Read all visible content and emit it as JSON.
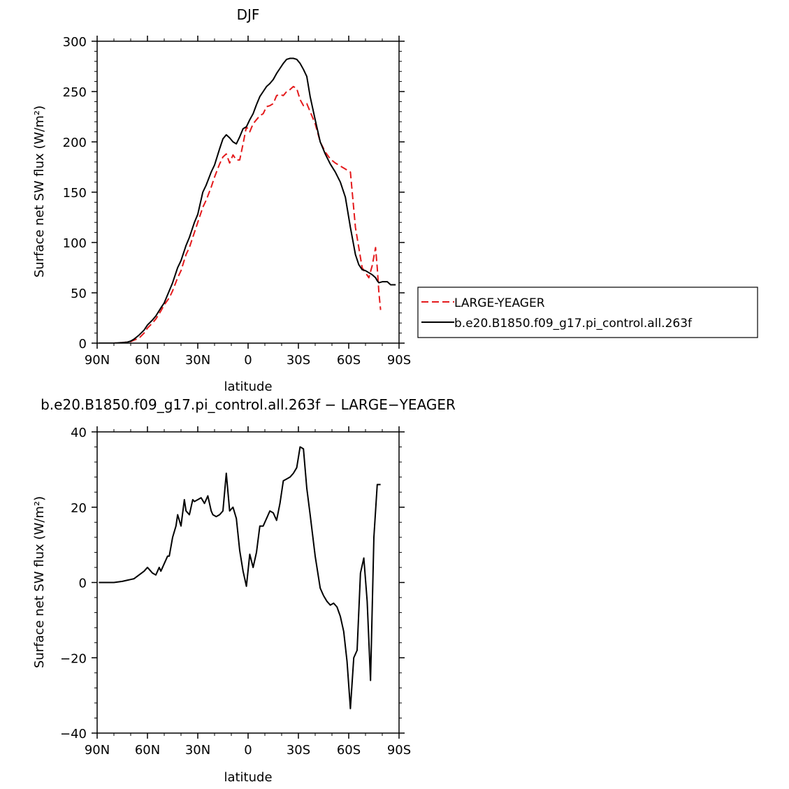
{
  "chart_data": [
    {
      "type": "line",
      "title": "DJF",
      "xlabel": "latitude",
      "ylabel": "Surface net SW flux (W/m²)",
      "xlim": [
        -90,
        90
      ],
      "ylim": [
        0,
        300
      ],
      "x_tick_values": [
        -90,
        -60,
        -30,
        0,
        30,
        60,
        90
      ],
      "x_tick_labels": [
        "90N",
        "60N",
        "30N",
        "0",
        "30S",
        "60S",
        "90S"
      ],
      "y_tick_values": [
        0,
        50,
        100,
        150,
        200,
        250,
        300
      ],
      "y_tick_labels": [
        "0",
        "50",
        "100",
        "150",
        "200",
        "250",
        "300"
      ],
      "legend_position": "right",
      "series": [
        {
          "name": "LARGE-YEAGER",
          "color": "#e41a1c",
          "dash": "dashed",
          "x": [
            -89,
            -85,
            -80,
            -75,
            -72,
            -70,
            -68,
            -65,
            -62,
            -60,
            -57,
            -55,
            -52,
            -50,
            -47,
            -45,
            -42,
            -40,
            -37,
            -35,
            -32,
            -30,
            -27,
            -25,
            -22,
            -20,
            -17,
            -15,
            -13,
            -11,
            -9,
            -7,
            -5,
            -3,
            -1,
            1,
            3,
            5,
            7,
            9,
            11,
            13,
            15,
            17,
            19,
            21,
            23,
            25,
            27,
            29,
            31,
            33,
            35,
            37,
            40,
            43,
            46,
            49,
            52,
            55,
            58,
            61,
            64,
            66,
            68,
            70,
            72,
            74,
            76,
            77,
            78,
            79
          ],
          "y": [
            0,
            0,
            0,
            0.5,
            1,
            1.5,
            3,
            5,
            10,
            15,
            20,
            24,
            32,
            38,
            45,
            52,
            65,
            72,
            88,
            95,
            110,
            120,
            135,
            142,
            155,
            165,
            178,
            185,
            188,
            179,
            187,
            182,
            182,
            198,
            215,
            210,
            218,
            222,
            226,
            228,
            235,
            236,
            238,
            246,
            247,
            246,
            250,
            252,
            255,
            253,
            242,
            236,
            238,
            230,
            218,
            200,
            190,
            183,
            179,
            176,
            173,
            170,
            115,
            95,
            75,
            70,
            65,
            77,
            95,
            75,
            50,
            33
          ]
        },
        {
          "name": "b.e20.B1850.f09_g17.pi_control.all.263f",
          "color": "#000000",
          "dash": "solid",
          "x": [
            -89,
            -85,
            -80,
            -75,
            -72,
            -70,
            -68,
            -65,
            -62,
            -60,
            -57,
            -55,
            -52,
            -50,
            -47,
            -45,
            -42,
            -40,
            -37,
            -35,
            -32,
            -30,
            -27,
            -25,
            -22,
            -20,
            -17,
            -15,
            -13,
            -11,
            -9,
            -7,
            -5,
            -3,
            -1,
            1,
            3,
            5,
            7,
            9,
            11,
            13,
            15,
            17,
            19,
            21,
            23,
            25,
            27,
            29,
            31,
            33,
            35,
            37,
            40,
            43,
            46,
            49,
            52,
            55,
            58,
            61,
            64,
            66,
            68,
            70,
            72,
            74,
            76,
            77,
            78,
            80,
            83,
            85,
            88
          ],
          "y": [
            0,
            0,
            0,
            0.5,
            1,
            2,
            4,
            8,
            13,
            18,
            23,
            27,
            35,
            40,
            52,
            60,
            75,
            82,
            97,
            105,
            120,
            128,
            150,
            157,
            170,
            177,
            193,
            203,
            207,
            204,
            200,
            198,
            205,
            213,
            215,
            222,
            228,
            237,
            245,
            250,
            255,
            258,
            262,
            268,
            273,
            278,
            282,
            283,
            283,
            282,
            278,
            272,
            265,
            245,
            222,
            200,
            188,
            178,
            170,
            160,
            145,
            115,
            88,
            78,
            73,
            72,
            70,
            68,
            65,
            62,
            60,
            61,
            61,
            58,
            58
          ]
        }
      ]
    },
    {
      "type": "line",
      "title": "b.e20.B1850.f09_g17.pi_control.all.263f − LARGE−YEAGER",
      "xlabel": "latitude",
      "ylabel": "Surface net SW flux (W/m²)",
      "xlim": [
        -90,
        90
      ],
      "ylim": [
        -40,
        40
      ],
      "x_tick_values": [
        -90,
        -60,
        -30,
        0,
        30,
        60,
        90
      ],
      "x_tick_labels": [
        "90N",
        "60N",
        "30N",
        "0",
        "30S",
        "60S",
        "90S"
      ],
      "y_tick_values": [
        -40,
        -20,
        0,
        20,
        40
      ],
      "y_tick_labels": [
        "−40",
        "−20",
        "0",
        "20",
        "40"
      ],
      "series": [
        {
          "color": "#000000",
          "dash": "solid",
          "x": [
            -89,
            -85,
            -80,
            -75,
            -72,
            -70,
            -68,
            -65,
            -62,
            -60,
            -58,
            -57,
            -55,
            -53,
            -52,
            -50,
            -48,
            -47,
            -45,
            -43,
            -42,
            -40,
            -38,
            -37,
            -35,
            -33,
            -32,
            -30,
            -28,
            -26,
            -24,
            -22,
            -21,
            -19,
            -17,
            -15,
            -13,
            -11,
            -9,
            -7,
            -5,
            -3,
            -1,
            1,
            3,
            5,
            7,
            9,
            11,
            13,
            15,
            17,
            19,
            21,
            23,
            25,
            27,
            29,
            31,
            33,
            35,
            37,
            40,
            43,
            45,
            47,
            49,
            51,
            53,
            55,
            57,
            59,
            61,
            63,
            65,
            67,
            69,
            71,
            73,
            75,
            77,
            79
          ],
          "y": [
            0,
            0,
            0,
            0.3,
            0.6,
            0.8,
            1,
            2,
            3,
            4,
            3,
            2.5,
            2,
            4,
            3,
            5,
            7,
            7,
            12,
            15,
            18,
            15,
            22,
            19,
            18,
            22,
            21.5,
            22,
            22.5,
            21,
            23,
            19,
            18,
            17.5,
            18,
            19,
            29,
            19,
            20,
            17,
            8.5,
            3,
            -1,
            7.5,
            4,
            8,
            15,
            15,
            17,
            19,
            18.5,
            16.5,
            21,
            27,
            27.5,
            28,
            29,
            30.5,
            36,
            35.5,
            25,
            18,
            7,
            -1.5,
            -3.5,
            -5,
            -6,
            -5.5,
            -6.5,
            -9,
            -13,
            -21,
            -33.5,
            -20,
            -18,
            2.5,
            6.5,
            -5,
            -26,
            12,
            26,
            26
          ]
        }
      ]
    }
  ]
}
